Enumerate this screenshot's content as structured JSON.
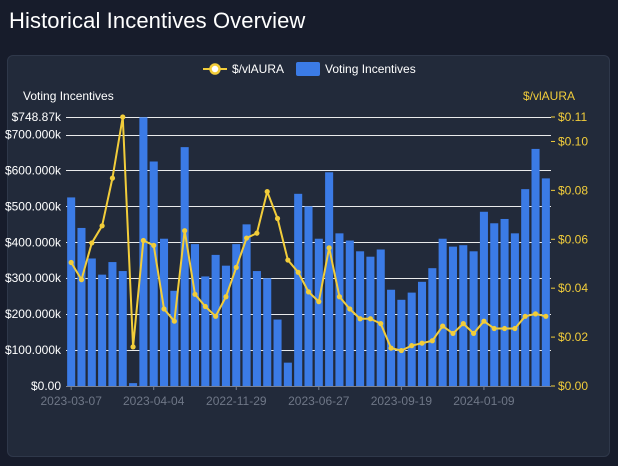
{
  "page": {
    "title": "Historical Incentives Overview"
  },
  "colors": {
    "background": "#171c2b",
    "panel": "#222a3a",
    "bar": "#3b7be6",
    "line": "#f2cd3a",
    "grid": "#ffffff",
    "xtick": "#6f7787"
  },
  "chart_data": {
    "type": "bar+line",
    "title": "Historical Incentives Overview",
    "legend": [
      "$/vlAURA",
      "Voting Incentives"
    ],
    "legend_position": "top-center",
    "left_axis": {
      "title": "Voting Incentives",
      "min": 0,
      "max": 748870,
      "ticks": [
        0,
        100000,
        200000,
        300000,
        400000,
        500000,
        600000,
        700000,
        748870
      ],
      "tick_labels": [
        "$0.00",
        "$100.000k",
        "$200.000k",
        "$300.000k",
        "$400.000k",
        "$500.000k",
        "$600.000k",
        "$700.000k",
        "$748.87k"
      ]
    },
    "right_axis": {
      "title": "$/vlAURA",
      "min": 0,
      "max": 0.11,
      "ticks": [
        0,
        0.02,
        0.04,
        0.06,
        0.08,
        0.1,
        0.11
      ],
      "tick_labels": [
        "$0.00",
        "$0.02",
        "$0.04",
        "$0.06",
        "$0.08",
        "$0.10",
        "$0.11"
      ]
    },
    "x_tick_labels": [
      {
        "index": 0,
        "label": "2023-03-07"
      },
      {
        "index": 8,
        "label": "2023-04-04"
      },
      {
        "index": 16,
        "label": "2022-11-29"
      },
      {
        "index": 24,
        "label": "2023-06-27"
      },
      {
        "index": 32,
        "label": "2023-09-19"
      },
      {
        "index": 40,
        "label": "2024-01-09"
      }
    ],
    "series": [
      {
        "name": "Voting Incentives",
        "type": "bar",
        "axis": "left",
        "values": [
          525000,
          440000,
          355000,
          310000,
          345000,
          320000,
          8000,
          748000,
          625000,
          410000,
          265000,
          665000,
          395000,
          305000,
          365000,
          335000,
          395000,
          450000,
          320000,
          300000,
          185000,
          65000,
          535000,
          500000,
          410000,
          595000,
          425000,
          405000,
          375000,
          360000,
          380000,
          268000,
          240000,
          260000,
          290000,
          328000,
          410000,
          388000,
          392000,
          375000,
          485000,
          453000,
          465000,
          425000,
          548000,
          660000,
          578000
        ]
      },
      {
        "name": "$/vlAURA",
        "type": "line",
        "axis": "right",
        "values": [
          0.0505,
          0.0435,
          0.0585,
          0.0655,
          0.085,
          0.11,
          0.016,
          0.0595,
          0.0575,
          0.0315,
          0.0265,
          0.0635,
          0.0375,
          0.0325,
          0.0285,
          0.0365,
          0.0485,
          0.0605,
          0.0625,
          0.0795,
          0.0685,
          0.0515,
          0.0465,
          0.0385,
          0.0345,
          0.0565,
          0.0365,
          0.0315,
          0.0275,
          0.0275,
          0.0255,
          0.0155,
          0.0145,
          0.0165,
          0.0175,
          0.0185,
          0.0245,
          0.0215,
          0.0255,
          0.0215,
          0.0265,
          0.0235,
          0.0235,
          0.0235,
          0.0285,
          0.0295,
          0.0285
        ]
      }
    ]
  }
}
